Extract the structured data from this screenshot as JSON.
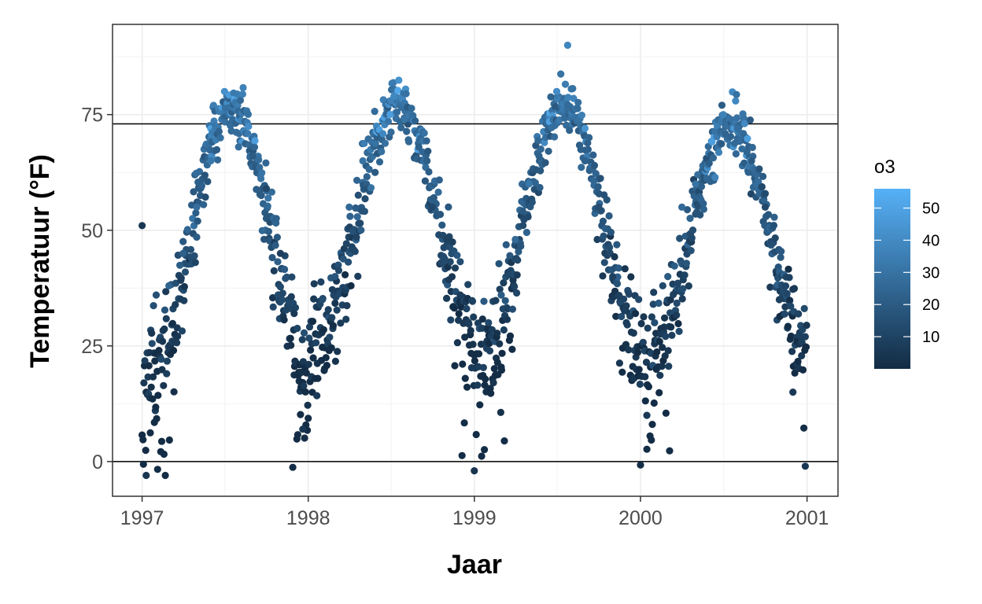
{
  "chart_data": {
    "type": "scatter",
    "title": "",
    "xlabel": "Jaar",
    "ylabel": "Temperatuur (°F)",
    "x_ticks": [
      "1997",
      "1998",
      "1999",
      "2000",
      "2001"
    ],
    "y_ticks": [
      "0",
      "25",
      "50",
      "75"
    ],
    "x_range": [
      "1996-10-28",
      "2001-03-10"
    ],
    "ylim": [
      -7.5,
      94.5
    ],
    "hlines": [
      0,
      73
    ],
    "grid": true,
    "color_scale": {
      "name": "o3",
      "min": 0,
      "max": 56,
      "low_color": "#132B43",
      "high_color": "#56B1F7",
      "ticks": [
        "10",
        "20",
        "30",
        "40",
        "50"
      ]
    },
    "legend_position": "right",
    "pattern": "seasonal daily observations 1997-2000; temperature peaks about 75-85 °F in mid-summer and drops to about 0-25 °F in mid-winter; higher o3 values coincide with warmer summer days",
    "x_start": "1997-01-01",
    "points_sample": [
      {
        "x": "1997-01-01",
        "y": 51,
        "o3": 5
      },
      {
        "x": "1997-01-05",
        "y": 17,
        "o3": 6
      },
      {
        "x": "1997-01-10",
        "y": -3,
        "o3": 4
      },
      {
        "x": "1997-02-01",
        "y": 36,
        "o3": 15
      },
      {
        "x": "1997-03-01",
        "y": 38,
        "o3": 24
      },
      {
        "x": "1997-04-01",
        "y": 45,
        "o3": 22
      },
      {
        "x": "1997-05-01",
        "y": 55,
        "o3": 28
      },
      {
        "x": "1997-06-01",
        "y": 65,
        "o3": 32
      },
      {
        "x": "1997-07-01",
        "y": 80,
        "o3": 42
      },
      {
        "x": "1997-08-01",
        "y": 68,
        "o3": 28
      },
      {
        "x": "1997-09-01",
        "y": 66,
        "o3": 20
      },
      {
        "x": "1997-10-01",
        "y": 59,
        "o3": 12
      },
      {
        "x": "1997-11-01",
        "y": 45,
        "o3": 8
      },
      {
        "x": "1997-12-01",
        "y": 32,
        "o3": 6
      },
      {
        "x": "1997-12-20",
        "y": 7,
        "o3": 5
      },
      {
        "x": "1998-02-01",
        "y": 35,
        "o3": 14
      },
      {
        "x": "1998-03-01",
        "y": 40,
        "o3": 18
      },
      {
        "x": "1998-04-01",
        "y": 55,
        "o3": 26
      },
      {
        "x": "1998-05-01",
        "y": 65,
        "o3": 30
      },
      {
        "x": "1998-07-01",
        "y": 78,
        "o3": 36
      },
      {
        "x": "1998-08-01",
        "y": 74,
        "o3": 30
      },
      {
        "x": "1998-09-01",
        "y": 68,
        "o3": 22
      },
      {
        "x": "1998-10-01",
        "y": 55,
        "o3": 12
      },
      {
        "x": "1998-11-01",
        "y": 48,
        "o3": 9
      },
      {
        "x": "1998-12-01",
        "y": 36,
        "o3": 7
      },
      {
        "x": "1999-01-01",
        "y": -2,
        "o3": 4
      },
      {
        "x": "1999-02-01",
        "y": 30,
        "o3": 12
      },
      {
        "x": "1999-03-01",
        "y": 36,
        "o3": 20
      },
      {
        "x": "1999-04-01",
        "y": 48,
        "o3": 26
      },
      {
        "x": "1999-05-01",
        "y": 60,
        "o3": 32
      },
      {
        "x": "1999-07-01",
        "y": 80,
        "o3": 40
      },
      {
        "x": "1999-07-25",
        "y": 90,
        "o3": 38
      },
      {
        "x": "1999-09-01",
        "y": 65,
        "o3": 22
      },
      {
        "x": "1999-10-01",
        "y": 55,
        "o3": 14
      },
      {
        "x": "1999-11-01",
        "y": 40,
        "o3": 9
      },
      {
        "x": "1999-12-01",
        "y": 30,
        "o3": 7
      },
      {
        "x": "2000-01-15",
        "y": 10,
        "o3": 6
      },
      {
        "x": "2000-02-01",
        "y": 30,
        "o3": 14
      },
      {
        "x": "2000-03-01",
        "y": 40,
        "o3": 20
      },
      {
        "x": "2000-04-01",
        "y": 55,
        "o3": 26
      },
      {
        "x": "2000-05-01",
        "y": 60,
        "o3": 30
      },
      {
        "x": "2000-07-01",
        "y": 75,
        "o3": 36
      },
      {
        "x": "2000-08-01",
        "y": 72,
        "o3": 28
      },
      {
        "x": "2000-09-01",
        "y": 65,
        "o3": 20
      },
      {
        "x": "2000-10-01",
        "y": 55,
        "o3": 12
      },
      {
        "x": "2000-11-01",
        "y": 35,
        "o3": 8
      },
      {
        "x": "2000-12-01",
        "y": 15,
        "o3": 6
      },
      {
        "x": "2000-12-28",
        "y": -1,
        "o3": 5
      }
    ]
  }
}
